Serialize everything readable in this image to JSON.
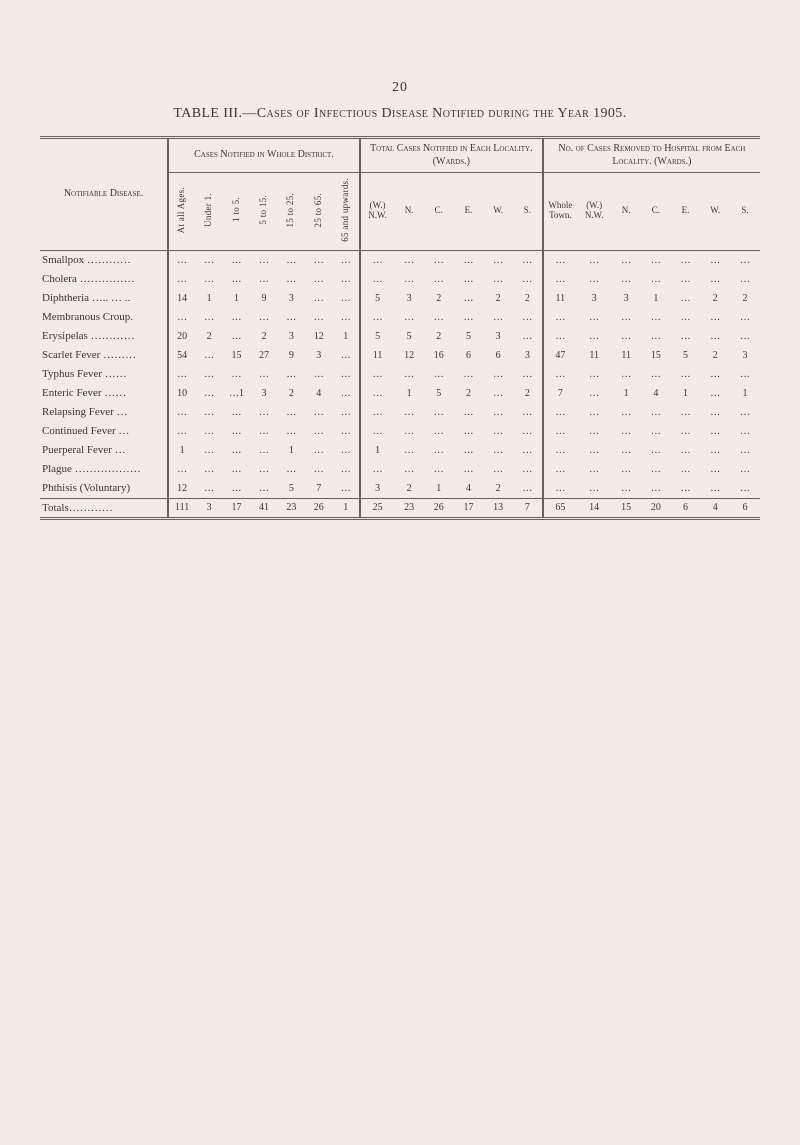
{
  "page_number": "20",
  "caption": "TABLE III.—Cases of Infectious Disease Notified during the Year 1905.",
  "header": {
    "row_label": "Notifiable Disease.",
    "group1": "Cases Notified in Whole District.",
    "group2": "Total Cases Notified in Each Locality. (Wards.)",
    "group3": "No. of Cases Removed to Hospital from Each Locality. (Wards.)",
    "g1_cols": [
      "At all Ages.",
      "Under 1.",
      "1 to 5.",
      "5 to 15.",
      "15 to 25.",
      "25 to 65.",
      "65 and upwards."
    ],
    "g2_cols": [
      "(W.) N.W.",
      "N.",
      "C.",
      "E.",
      "W.",
      "S."
    ],
    "g3_cols": [
      "Whole Town.",
      "(W.) N.W.",
      "N.",
      "C.",
      "E.",
      "W.",
      "S."
    ]
  },
  "diseases": [
    "Smallpox …………",
    "Cholera ……………",
    "Diphtheria ….. … ..",
    "Membranous Croup.",
    "Erysipelas …………",
    "Scarlet Fever ………",
    "Typhus Fever ……",
    "Enteric Fever ……",
    "Relapsing Fever …",
    "Continued Fever …",
    "Puerperal Fever …",
    "Plague ………………",
    "Phthisis (Voluntary)"
  ],
  "rows": [
    {
      "g1": [
        "…",
        "…",
        "…",
        "…",
        "…",
        "…",
        "…"
      ],
      "g2": [
        "…",
        "…",
        "…",
        "…",
        "…",
        "…"
      ],
      "g3": [
        "…",
        "…",
        "…",
        "…",
        "…",
        "…",
        "…"
      ]
    },
    {
      "g1": [
        "…",
        "…",
        "…",
        "…",
        "…",
        "…",
        "…"
      ],
      "g2": [
        "…",
        "…",
        "…",
        "…",
        "…",
        "…"
      ],
      "g3": [
        "…",
        "…",
        "…",
        "…",
        "…",
        "…",
        "…"
      ]
    },
    {
      "g1": [
        "14",
        "1",
        "1",
        "9",
        "3",
        "…",
        "…"
      ],
      "g2": [
        "5",
        "3",
        "2",
        "…",
        "2",
        "2"
      ],
      "g3": [
        "11",
        "3",
        "3",
        "1",
        "…",
        "2",
        "2"
      ]
    },
    {
      "g1": [
        "…",
        "…",
        "…",
        "…",
        "…",
        "…",
        "…"
      ],
      "g2": [
        "…",
        "…",
        "…",
        "…",
        "…",
        "…"
      ],
      "g3": [
        "…",
        "…",
        "…",
        "…",
        "…",
        "…",
        "…"
      ]
    },
    {
      "g1": [
        "20",
        "2",
        "…",
        "2",
        "3",
        "12",
        "1"
      ],
      "g2": [
        "5",
        "5",
        "2",
        "5",
        "3",
        "…"
      ],
      "g3": [
        "…",
        "…",
        "…",
        "…",
        "…",
        "…",
        "…"
      ]
    },
    {
      "g1": [
        "54",
        "…",
        "15",
        "27",
        "9",
        "3",
        "…"
      ],
      "g2": [
        "11",
        "12",
        "16",
        "6",
        "6",
        "3"
      ],
      "g3": [
        "47",
        "11",
        "11",
        "15",
        "5",
        "2",
        "3"
      ]
    },
    {
      "g1": [
        "…",
        "…",
        "…",
        "…",
        "…",
        "…",
        "…"
      ],
      "g2": [
        "…",
        "…",
        "…",
        "…",
        "…",
        "…"
      ],
      "g3": [
        "…",
        "…",
        "…",
        "…",
        "…",
        "…",
        "…"
      ]
    },
    {
      "g1": [
        "10",
        "…",
        "…1",
        "3",
        "2",
        "4",
        "…"
      ],
      "g2": [
        "…",
        "1",
        "5",
        "2",
        "…",
        "2"
      ],
      "g3": [
        "7",
        "…",
        "1",
        "4",
        "1",
        "…",
        "1"
      ]
    },
    {
      "g1": [
        "…",
        "…",
        "…",
        "…",
        "…",
        "…",
        "…"
      ],
      "g2": [
        "…",
        "…",
        "…",
        "…",
        "…",
        "…"
      ],
      "g3": [
        "…",
        "…",
        "…",
        "…",
        "…",
        "…",
        "…"
      ]
    },
    {
      "g1": [
        "…",
        "…",
        "…",
        "…",
        "…",
        "…",
        "…"
      ],
      "g2": [
        "…",
        "…",
        "…",
        "…",
        "…",
        "…"
      ],
      "g3": [
        "…",
        "…",
        "…",
        "…",
        "…",
        "…",
        "…"
      ]
    },
    {
      "g1": [
        "1",
        "…",
        "…",
        "…",
        "1",
        "…",
        "…"
      ],
      "g2": [
        "1",
        "…",
        "…",
        "…",
        "…",
        "…"
      ],
      "g3": [
        "…",
        "…",
        "…",
        "…",
        "…",
        "…",
        "…"
      ]
    },
    {
      "g1": [
        "…",
        "…",
        "…",
        "…",
        "…",
        "…",
        "…"
      ],
      "g2": [
        "…",
        "…",
        "…",
        "…",
        "…",
        "…"
      ],
      "g3": [
        "…",
        "…",
        "…",
        "…",
        "…",
        "…",
        "…"
      ]
    },
    {
      "g1": [
        "12",
        "…",
        "…",
        "…",
        "5",
        "7",
        "…"
      ],
      "g2": [
        "3",
        "2",
        "1",
        "4",
        "2",
        "…"
      ],
      "g3": [
        "…",
        "…",
        "…",
        "…",
        "…",
        "…",
        "…"
      ]
    }
  ],
  "totals_label": "Totals…………",
  "totals": {
    "g1": [
      "111",
      "3",
      "17",
      "41",
      "23",
      "26",
      "1"
    ],
    "g2": [
      "25",
      "23",
      "26",
      "17",
      "13",
      "7"
    ],
    "g3": [
      "65",
      "14",
      "15",
      "20",
      "6",
      "4",
      "6"
    ]
  },
  "colors": {
    "background": "#f2ede4",
    "text": "#3a3530",
    "rule": "#6b6050"
  }
}
